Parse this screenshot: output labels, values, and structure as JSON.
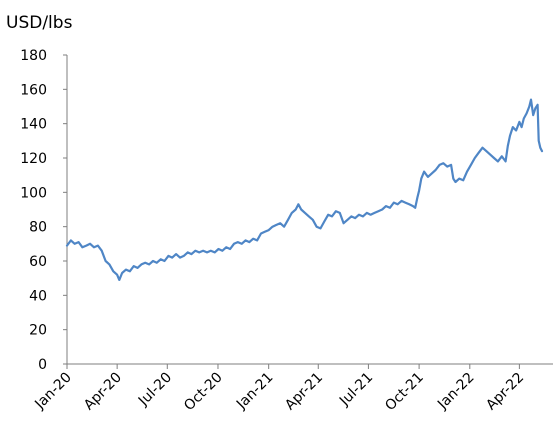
{
  "chart_data": {
    "type": "line",
    "title": "",
    "xlabel": "",
    "ylabel": "USD/lbs",
    "ylim": [
      0,
      180
    ],
    "yticks": [
      0,
      20,
      40,
      60,
      80,
      100,
      120,
      140,
      160,
      180
    ],
    "xlim": [
      "2020-01-01",
      "2022-06-01"
    ],
    "xticks": [
      {
        "date": "2020-01-01",
        "label": "Jan-20"
      },
      {
        "date": "2020-04-01",
        "label": "Apr-20"
      },
      {
        "date": "2020-07-01",
        "label": "Jul-20"
      },
      {
        "date": "2020-10-01",
        "label": "Oct-20"
      },
      {
        "date": "2021-01-01",
        "label": "Jan-21"
      },
      {
        "date": "2021-04-01",
        "label": "Apr-21"
      },
      {
        "date": "2021-07-01",
        "label": "Jul-21"
      },
      {
        "date": "2021-10-01",
        "label": "Oct-21"
      },
      {
        "date": "2022-01-01",
        "label": "Jan-22"
      },
      {
        "date": "2022-04-01",
        "label": "Apr-22"
      }
    ],
    "grid": false,
    "legend": "none",
    "series": [
      {
        "color": "#4f86c6",
        "points": [
          [
            "2020-01-01",
            69
          ],
          [
            "2020-01-08",
            72
          ],
          [
            "2020-01-15",
            70
          ],
          [
            "2020-01-22",
            71
          ],
          [
            "2020-01-29",
            68
          ],
          [
            "2020-02-05",
            69
          ],
          [
            "2020-02-12",
            70
          ],
          [
            "2020-02-19",
            68
          ],
          [
            "2020-02-26",
            69
          ],
          [
            "2020-03-04",
            66
          ],
          [
            "2020-03-11",
            60
          ],
          [
            "2020-03-18",
            58
          ],
          [
            "2020-03-25",
            54
          ],
          [
            "2020-04-01",
            52
          ],
          [
            "2020-04-05",
            49
          ],
          [
            "2020-04-10",
            53
          ],
          [
            "2020-04-17",
            55
          ],
          [
            "2020-04-24",
            54
          ],
          [
            "2020-05-01",
            57
          ],
          [
            "2020-05-08",
            56
          ],
          [
            "2020-05-15",
            58
          ],
          [
            "2020-05-22",
            59
          ],
          [
            "2020-05-29",
            58
          ],
          [
            "2020-06-05",
            60
          ],
          [
            "2020-06-12",
            59
          ],
          [
            "2020-06-19",
            61
          ],
          [
            "2020-06-26",
            60
          ],
          [
            "2020-07-03",
            63
          ],
          [
            "2020-07-10",
            62
          ],
          [
            "2020-07-17",
            64
          ],
          [
            "2020-07-24",
            62
          ],
          [
            "2020-07-31",
            63
          ],
          [
            "2020-08-07",
            65
          ],
          [
            "2020-08-14",
            64
          ],
          [
            "2020-08-21",
            66
          ],
          [
            "2020-08-28",
            65
          ],
          [
            "2020-09-04",
            66
          ],
          [
            "2020-09-11",
            65
          ],
          [
            "2020-09-18",
            66
          ],
          [
            "2020-09-25",
            65
          ],
          [
            "2020-10-02",
            67
          ],
          [
            "2020-10-09",
            66
          ],
          [
            "2020-10-16",
            68
          ],
          [
            "2020-10-23",
            67
          ],
          [
            "2020-10-30",
            70
          ],
          [
            "2020-11-06",
            71
          ],
          [
            "2020-11-13",
            70
          ],
          [
            "2020-11-20",
            72
          ],
          [
            "2020-11-27",
            71
          ],
          [
            "2020-12-04",
            73
          ],
          [
            "2020-12-11",
            72
          ],
          [
            "2020-12-18",
            76
          ],
          [
            "2020-12-25",
            77
          ],
          [
            "2021-01-01",
            78
          ],
          [
            "2021-01-08",
            80
          ],
          [
            "2021-01-15",
            81
          ],
          [
            "2021-01-22",
            82
          ],
          [
            "2021-01-29",
            80
          ],
          [
            "2021-02-05",
            84
          ],
          [
            "2021-02-12",
            88
          ],
          [
            "2021-02-19",
            90
          ],
          [
            "2021-02-24",
            93
          ],
          [
            "2021-03-01",
            90
          ],
          [
            "2021-03-08",
            88
          ],
          [
            "2021-03-15",
            86
          ],
          [
            "2021-03-22",
            84
          ],
          [
            "2021-03-29",
            80
          ],
          [
            "2021-04-05",
            79
          ],
          [
            "2021-04-12",
            83
          ],
          [
            "2021-04-19",
            87
          ],
          [
            "2021-04-26",
            86
          ],
          [
            "2021-05-03",
            89
          ],
          [
            "2021-05-10",
            88
          ],
          [
            "2021-05-17",
            82
          ],
          [
            "2021-05-24",
            84
          ],
          [
            "2021-05-31",
            86
          ],
          [
            "2021-06-07",
            85
          ],
          [
            "2021-06-14",
            87
          ],
          [
            "2021-06-21",
            86
          ],
          [
            "2021-06-28",
            88
          ],
          [
            "2021-07-05",
            87
          ],
          [
            "2021-07-12",
            88
          ],
          [
            "2021-07-19",
            89
          ],
          [
            "2021-07-26",
            90
          ],
          [
            "2021-08-02",
            92
          ],
          [
            "2021-08-09",
            91
          ],
          [
            "2021-08-16",
            94
          ],
          [
            "2021-08-23",
            93
          ],
          [
            "2021-08-30",
            95
          ],
          [
            "2021-09-06",
            94
          ],
          [
            "2021-09-13",
            93
          ],
          [
            "2021-09-20",
            92
          ],
          [
            "2021-09-24",
            91
          ],
          [
            "2021-09-28",
            97
          ],
          [
            "2021-10-01",
            101
          ],
          [
            "2021-10-05",
            108
          ],
          [
            "2021-10-10",
            112
          ],
          [
            "2021-10-17",
            109
          ],
          [
            "2021-10-24",
            111
          ],
          [
            "2021-10-31",
            113
          ],
          [
            "2021-11-07",
            116
          ],
          [
            "2021-11-14",
            117
          ],
          [
            "2021-11-21",
            115
          ],
          [
            "2021-11-28",
            116
          ],
          [
            "2021-12-02",
            108
          ],
          [
            "2021-12-06",
            106
          ],
          [
            "2021-12-13",
            108
          ],
          [
            "2021-12-20",
            107
          ],
          [
            "2021-12-27",
            112
          ],
          [
            "2022-01-03",
            116
          ],
          [
            "2022-01-10",
            120
          ],
          [
            "2022-01-17",
            123
          ],
          [
            "2022-01-24",
            126
          ],
          [
            "2022-01-31",
            124
          ],
          [
            "2022-02-07",
            122
          ],
          [
            "2022-02-14",
            120
          ],
          [
            "2022-02-21",
            118
          ],
          [
            "2022-02-28",
            121
          ],
          [
            "2022-03-07",
            118
          ],
          [
            "2022-03-11",
            127
          ],
          [
            "2022-03-15",
            133
          ],
          [
            "2022-03-20",
            138
          ],
          [
            "2022-03-26",
            136
          ],
          [
            "2022-04-01",
            141
          ],
          [
            "2022-04-05",
            138
          ],
          [
            "2022-04-09",
            143
          ],
          [
            "2022-04-14",
            146
          ],
          [
            "2022-04-19",
            150
          ],
          [
            "2022-04-22",
            154
          ],
          [
            "2022-04-26",
            145
          ],
          [
            "2022-04-30",
            149
          ],
          [
            "2022-05-04",
            151
          ],
          [
            "2022-05-06",
            130
          ],
          [
            "2022-05-09",
            126
          ],
          [
            "2022-05-12",
            124
          ]
        ]
      }
    ]
  }
}
